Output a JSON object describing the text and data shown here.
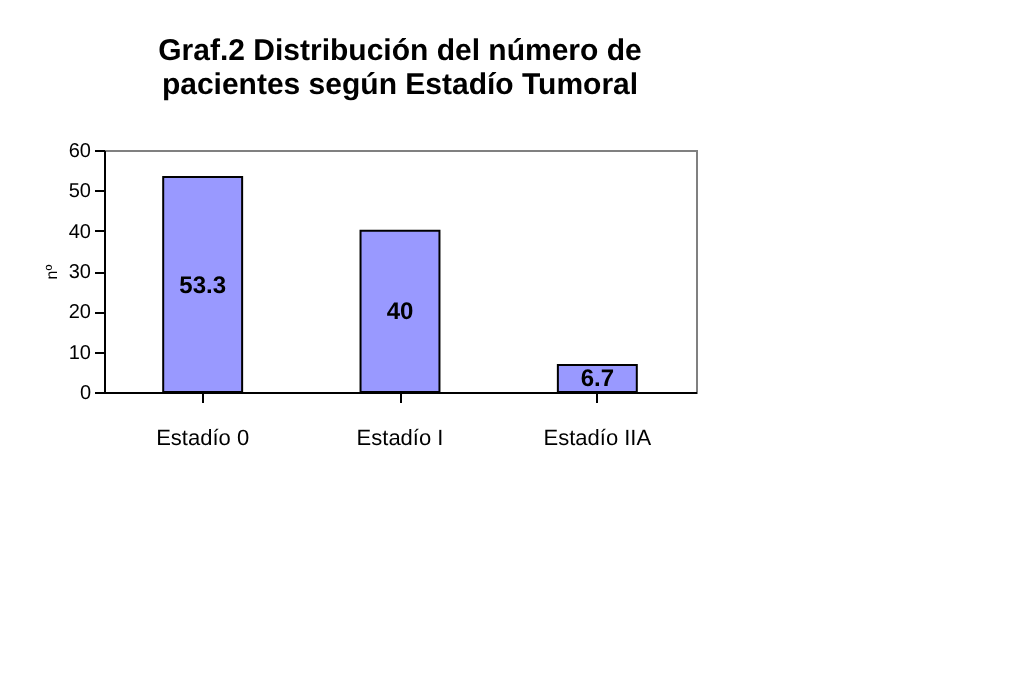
{
  "chart_data": {
    "type": "bar",
    "title": [
      "Graf.2  Distribución del número de",
      "pacientes según Estadío Tumoral"
    ],
    "ylabel": "nº",
    "categories": [
      "Estadío 0",
      "Estadío I",
      "Estadío IIA"
    ],
    "values": [
      53.3,
      40,
      6.7
    ],
    "color": "#9999ff",
    "ylim": [
      0,
      60
    ],
    "yticks": [
      0,
      10,
      20,
      30,
      40,
      50,
      60
    ],
    "grid": false,
    "data_labels": true
  }
}
